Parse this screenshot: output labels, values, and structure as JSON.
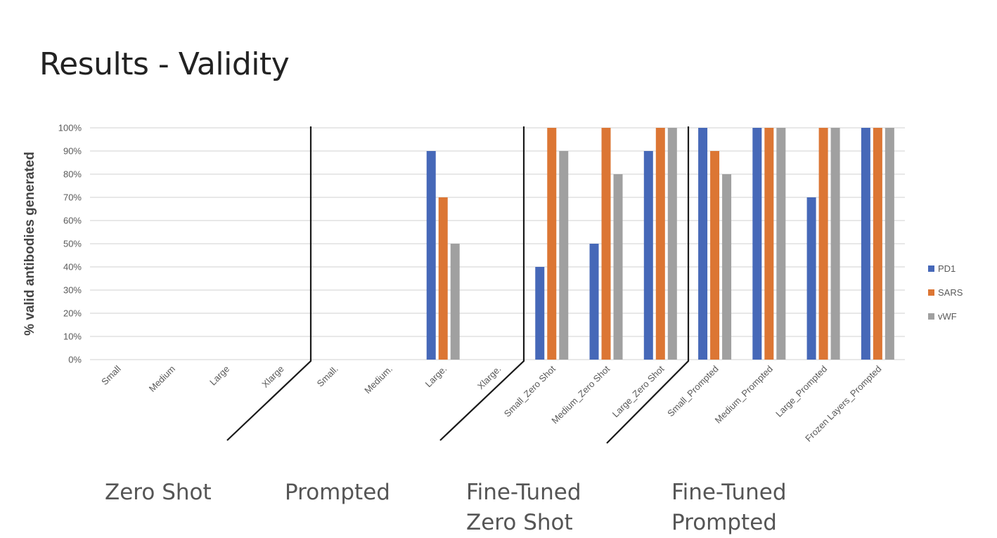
{
  "page_title": "Results - Validity",
  "group_labels": [
    "Zero Shot",
    "Prompted",
    "Fine-Tuned\nZero Shot",
    "Fine-Tuned\nPrompted"
  ],
  "chart_data": {
    "type": "bar",
    "title": "",
    "xlabel": "",
    "ylabel": "% valid antibodies generated",
    "ylim": [
      0,
      100
    ],
    "yticks": [
      "0%",
      "10%",
      "20%",
      "30%",
      "40%",
      "50%",
      "60%",
      "70%",
      "80%",
      "90%",
      "100%"
    ],
    "grid": true,
    "legend_position": "right",
    "categories": [
      "Small",
      "Medium",
      "Large",
      "Xlarge",
      "Small.",
      "Medium.",
      "Large.",
      "Xlarge.",
      "Small_Zero Shot",
      "Medium_Zero Shot",
      "Large_Zero Shot",
      "Small_Prompted",
      "Medium_Prompted",
      "Large_Prompted",
      "Frozen Layers_Prompted"
    ],
    "series": [
      {
        "name": "PD1",
        "color": "#4668B8",
        "values": [
          0,
          0,
          0,
          0,
          0,
          0,
          90,
          0,
          40,
          50,
          90,
          100,
          100,
          70,
          100
        ]
      },
      {
        "name": "SARS",
        "color": "#DC7634",
        "values": [
          0,
          0,
          0,
          0,
          0,
          0,
          70,
          0,
          100,
          100,
          100,
          90,
          100,
          100,
          100
        ]
      },
      {
        "name": "vWF",
        "color": "#A0A0A0",
        "values": [
          0,
          0,
          0,
          0,
          0,
          0,
          50,
          0,
          90,
          80,
          100,
          80,
          100,
          100,
          100
        ]
      }
    ]
  }
}
